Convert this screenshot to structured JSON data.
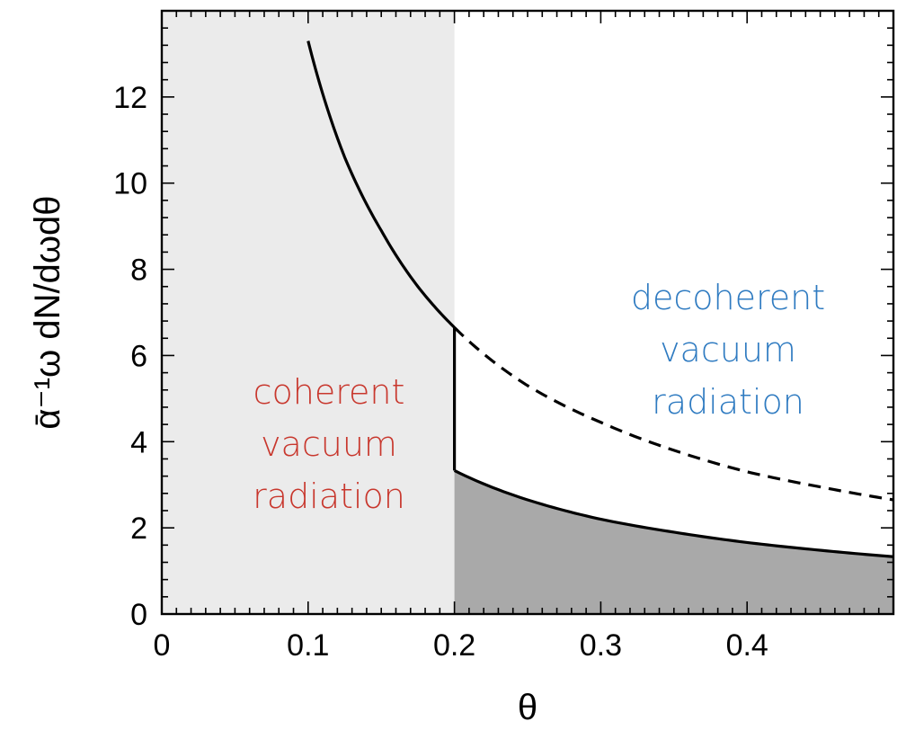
{
  "chart_data": {
    "type": "area",
    "title": "",
    "xlabel": "θ",
    "ylabel": "ᾱ⁻¹ω dN/dωdθ",
    "xlim": [
      0,
      0.5
    ],
    "ylim": [
      0,
      14
    ],
    "x_ticks": [
      "0",
      "0.1",
      "0.2",
      "0.3",
      "0.4"
    ],
    "x_tick_values": [
      0,
      0.1,
      0.2,
      0.3,
      0.4
    ],
    "y_ticks": [
      "0",
      "2",
      "4",
      "6",
      "8",
      "10",
      "12"
    ],
    "y_tick_values": [
      0,
      2,
      4,
      6,
      8,
      10,
      12
    ],
    "grid": false,
    "theta_cut": 0.2,
    "series": [
      {
        "style": "solid",
        "x": [
          0.1,
          0.125,
          0.15,
          0.175,
          0.2
        ],
        "y": [
          13.3,
          10.6,
          8.9,
          7.6,
          6.65
        ]
      },
      {
        "style": "dashed",
        "x": [
          0.2,
          0.25,
          0.3,
          0.35,
          0.4,
          0.45,
          0.5
        ],
        "y": [
          6.65,
          5.3,
          4.45,
          3.8,
          3.3,
          2.95,
          2.65
        ]
      },
      {
        "style": "solid",
        "x": [
          0.2,
          0.25,
          0.3,
          0.35,
          0.4,
          0.45,
          0.5
        ],
        "y": [
          3.33,
          2.65,
          2.2,
          1.9,
          1.66,
          1.48,
          1.33
        ]
      }
    ],
    "annotations": [
      {
        "region": "coherent",
        "lines": [
          "coherent",
          "vacuum",
          "radiation"
        ],
        "color": "#c8372d"
      },
      {
        "region": "decoherent",
        "lines": [
          "decoherent",
          "vacuum",
          "radiation"
        ],
        "color": "#2f7bc1"
      }
    ],
    "colors": {
      "coherent_fill": "#ebebeb",
      "decoherent_fill": "#a9a9a9",
      "curve": "#000000"
    }
  }
}
